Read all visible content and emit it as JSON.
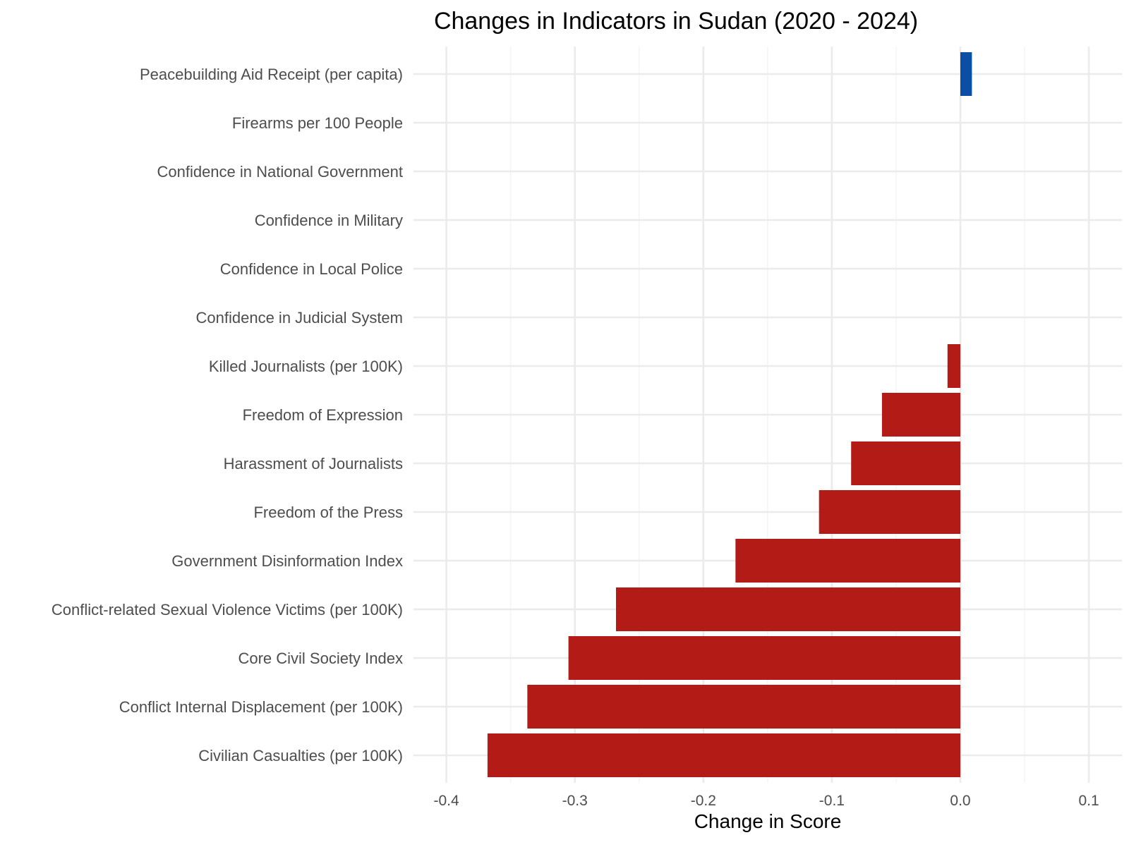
{
  "chart_data": {
    "type": "bar",
    "orientation": "horizontal",
    "title": "Changes in Indicators in Sudan (2020 - 2024)",
    "xlabel": "Change in Score",
    "ylabel": "",
    "xlim": [
      -0.42,
      0.125
    ],
    "x_ticks": [
      -0.4,
      -0.3,
      -0.2,
      -0.1,
      0.0,
      0.1
    ],
    "x_tick_labels": [
      "-0.4",
      "-0.3",
      "-0.2",
      "-0.1",
      "0.0",
      "0.1"
    ],
    "grid": true,
    "legend": "none",
    "colors": {
      "positive": "#0a4fa5",
      "negative": "#b31b17"
    },
    "categories": [
      "Peacebuilding Aid Receipt (per capita)",
      "Firearms per 100 People",
      "Confidence in National Government",
      "Confidence in Military",
      "Confidence in Local Police",
      "Confidence in Judicial System",
      "Killed Journalists (per 100K)",
      "Freedom of Expression",
      "Harassment of Journalists",
      "Freedom of the Press",
      "Government Disinformation Index",
      "Conflict-related Sexual Violence Victims (per 100K)",
      "Core Civil Society Index",
      "Conflict Internal Displacement (per 100K)",
      "Civilian Casualties (per 100K)"
    ],
    "values": [
      0.009,
      0,
      0,
      0,
      0,
      0,
      -0.01,
      -0.061,
      -0.085,
      -0.11,
      -0.175,
      -0.268,
      -0.305,
      -0.337,
      -0.368
    ]
  }
}
